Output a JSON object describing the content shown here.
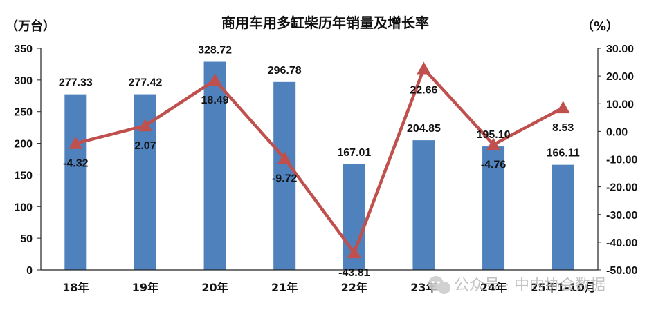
{
  "chart_data": {
    "type": "bar",
    "title": "商用车用多缸柴历年销量及增长率",
    "y_left_label": "（万台）",
    "y_right_label": "（%）",
    "categories": [
      "18年",
      "19年",
      "20年",
      "21年",
      "22年",
      "23年",
      "24年",
      "25年1-10月"
    ],
    "y_left_lim": [
      0,
      350
    ],
    "y_left_ticks": [
      "0",
      "50",
      "100",
      "150",
      "200",
      "250",
      "300",
      "350"
    ],
    "y_right_lim": [
      -50,
      30
    ],
    "y_right_ticks": [
      "-50.00",
      "-40.00",
      "-30.00",
      "-20.00",
      "-10.00",
      "0.00",
      "10.00",
      "20.00",
      "30.00"
    ],
    "series": [
      {
        "kind": "bar",
        "axis": "left",
        "color": "#4f81bd",
        "values": [
          277.33,
          277.42,
          328.72,
          296.78,
          167.01,
          204.85,
          195.1,
          166.11
        ],
        "labels": [
          "277.33",
          "277.42",
          "328.72",
          "296.78",
          "167.01",
          "204.85",
          "195.10",
          "166.11"
        ]
      },
      {
        "kind": "line",
        "axis": "right",
        "color": "#c0504d",
        "marker": "triangle",
        "values": [
          -4.32,
          2.07,
          18.49,
          -9.72,
          -43.81,
          22.66,
          -4.76,
          8.53
        ],
        "labels": [
          "-4.32",
          "2.07",
          "18.49",
          "-9.72",
          "-43.81",
          "22.66",
          "-4.76",
          "8.53"
        ]
      }
    ],
    "grid": false,
    "legend": "none"
  },
  "watermark": {
    "text": "公众号 · 中内协会数据",
    "icon": "wechat-icon"
  }
}
